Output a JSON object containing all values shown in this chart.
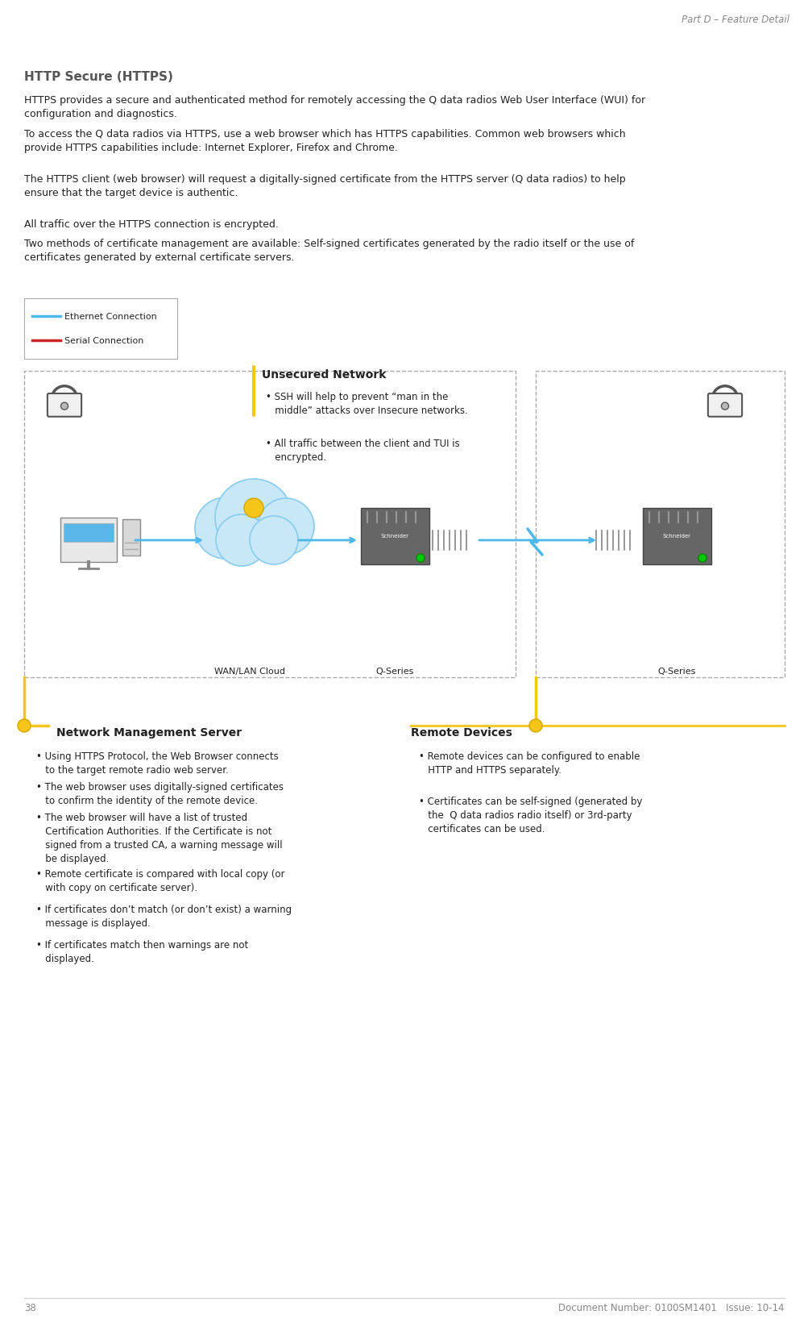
{
  "page_number": "38",
  "header_right": "Part D – Feature Detail",
  "footer_text": "Document Number: 0100SM1401   Issue: 10-14",
  "bg_color": "#ffffff",
  "gray_color": "#888888",
  "dark_color": "#222222",
  "section_title": "HTTP Secure (HTTPS)",
  "section_title_color": "#555555",
  "body_paragraphs": [
    "HTTPS provides a secure and authenticated method for remotely accessing the Q data radios Web User Interface (WUI) for configuration and diagnostics.",
    "To access the Q data radios via HTTPS, use a web browser which has HTTPS capabilities. Common web browsers which provide HTTPS capabilities include: Internet Explorer, Firefox and Chrome.",
    "The HTTPS client (web browser) will request a digitally-signed certificate from the HTTPS server (Q data radios) to help ensure that the target device is authentic.",
    "All traffic over the HTTPS connection is encrypted.",
    "Two methods of certificate management are available: Self-signed certificates generated by the radio itself or the use of certificates generated by external certificate servers."
  ],
  "legend_items": [
    {
      "label": "Ethernet Connection",
      "color": "#4ab8e8"
    },
    {
      "label": "Serial Connection",
      "color": "#cc2222"
    }
  ],
  "unsecured_network_title": "Unsecured Network",
  "unsecured_network_bullets": [
    "• SSH will help to prevent “man in the\n   middle” attacks over Insecure networks.",
    "• All traffic between the client and TUI is\n   encrypted."
  ],
  "network_mgmt_title": "Network Management Server",
  "network_mgmt_bullets": [
    "• Using HTTPS Protocol, the Web Browser connects\n   to the target remote radio web server.",
    "• The web browser uses digitally-signed certificates\n   to confirm the identity of the remote device.",
    "• The web browser will have a list of trusted\n   Certification Authorities. If the Certificate is not\n   signed from a trusted CA, a warning message will\n   be displayed.",
    "• Remote certificate is compared with local copy (or\n   with copy on certificate server).",
    "• If certificates don’t match (or don’t exist) a warning\n   message is displayed.",
    "• If certificates match then warnings are not\n   displayed."
  ],
  "remote_devices_title": "Remote Devices",
  "remote_devices_bullets": [
    "• Remote devices can be configured to enable\n   HTTP and HTTPS separately.",
    "• Certificates can be self-signed (generated by\n   the  Q data radios radio itself) or 3rd-party\n   certificates can be used."
  ],
  "yellow_color": "#f5c518",
  "blue_line_color": "#4ab8e8",
  "dashed_box_color": "#aaaaaa"
}
